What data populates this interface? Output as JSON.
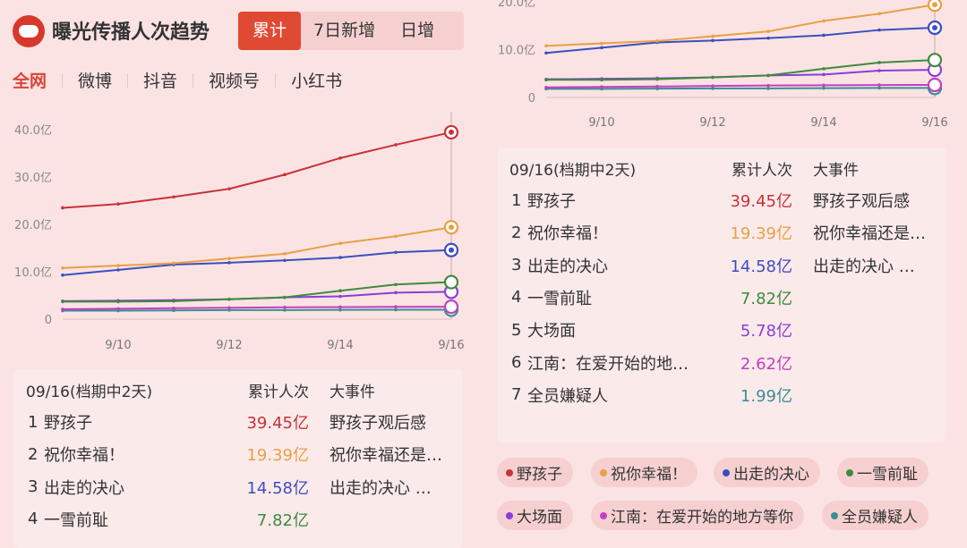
{
  "header": {
    "title": "曝光传播人次趋势",
    "tabs": [
      "累计",
      "7日新增",
      "日增"
    ],
    "active_tab": "累计"
  },
  "platforms": [
    "全网",
    "微博",
    "抖音",
    "视频号",
    "小红书"
  ],
  "active_platform": "全网",
  "chart_data": {
    "type": "line",
    "x": [
      "9/9",
      "9/10",
      "9/11",
      "9/12",
      "9/13",
      "9/14",
      "9/15",
      "9/16"
    ],
    "xticks": [
      "9/10",
      "9/12",
      "9/14",
      "9/16"
    ],
    "yticks": [
      "0",
      "10.0亿",
      "20.0亿",
      "30.0亿",
      "40.0亿"
    ],
    "ylim": [
      0,
      40
    ],
    "unit": "亿",
    "series": [
      {
        "name": "野孩子",
        "color": "#c8323a",
        "values": [
          23.5,
          24.3,
          25.8,
          27.5,
          30.5,
          34.0,
          36.8,
          39.45
        ]
      },
      {
        "name": "祝你幸福！",
        "color": "#e8a046",
        "values": [
          10.8,
          11.3,
          11.8,
          12.8,
          13.8,
          16.0,
          17.5,
          19.39
        ]
      },
      {
        "name": "出走的决心",
        "color": "#3a4fbf",
        "values": [
          9.3,
          10.4,
          11.5,
          11.9,
          12.4,
          13.0,
          14.1,
          14.58
        ]
      },
      {
        "name": "一雪前耻",
        "color": "#3f8a3c",
        "values": [
          3.7,
          3.7,
          3.8,
          4.2,
          4.6,
          6.0,
          7.3,
          7.82
        ]
      },
      {
        "name": "大场面",
        "color": "#8a3ed8",
        "values": [
          3.8,
          3.9,
          4.0,
          4.2,
          4.6,
          4.8,
          5.6,
          5.78
        ]
      },
      {
        "name": "江南：在爱开始的地方等你",
        "color": "#c43fc4",
        "values": [
          2.1,
          2.2,
          2.3,
          2.4,
          2.5,
          2.55,
          2.6,
          2.62
        ]
      },
      {
        "name": "全员嫌疑人",
        "color": "#3a8e94",
        "values": [
          1.8,
          1.8,
          1.85,
          1.9,
          1.9,
          1.95,
          1.98,
          1.99
        ]
      }
    ]
  },
  "table": {
    "date_label": "09/16(档期中2天)",
    "col_value": "累计人次",
    "col_event": "大事件",
    "rows": [
      {
        "rank": "1",
        "name": "野孩子",
        "value": "39.45亿",
        "event": "野孩子观后感",
        "color": "#c8323a"
      },
      {
        "rank": "2",
        "name": "祝你幸福！",
        "value": "19.39亿",
        "event": "祝你幸福还是…",
        "color": "#e8a046"
      },
      {
        "rank": "3",
        "name": "出走的决心",
        "value": "14.58亿",
        "event": "出走的决心 …",
        "color": "#3a4fbf"
      },
      {
        "rank": "4",
        "name": "一雪前耻",
        "value": "7.82亿",
        "event": "",
        "color": "#3f8a3c"
      },
      {
        "rank": "5",
        "name": "大场面",
        "value": "5.78亿",
        "event": "",
        "color": "#8a3ed8"
      },
      {
        "rank": "6",
        "name": "江南：在爱开始的地…",
        "value": "2.62亿",
        "event": "",
        "color": "#c43fc4"
      },
      {
        "rank": "7",
        "name": "全员嫌疑人",
        "value": "1.99亿",
        "event": "",
        "color": "#3a8e94"
      }
    ]
  }
}
